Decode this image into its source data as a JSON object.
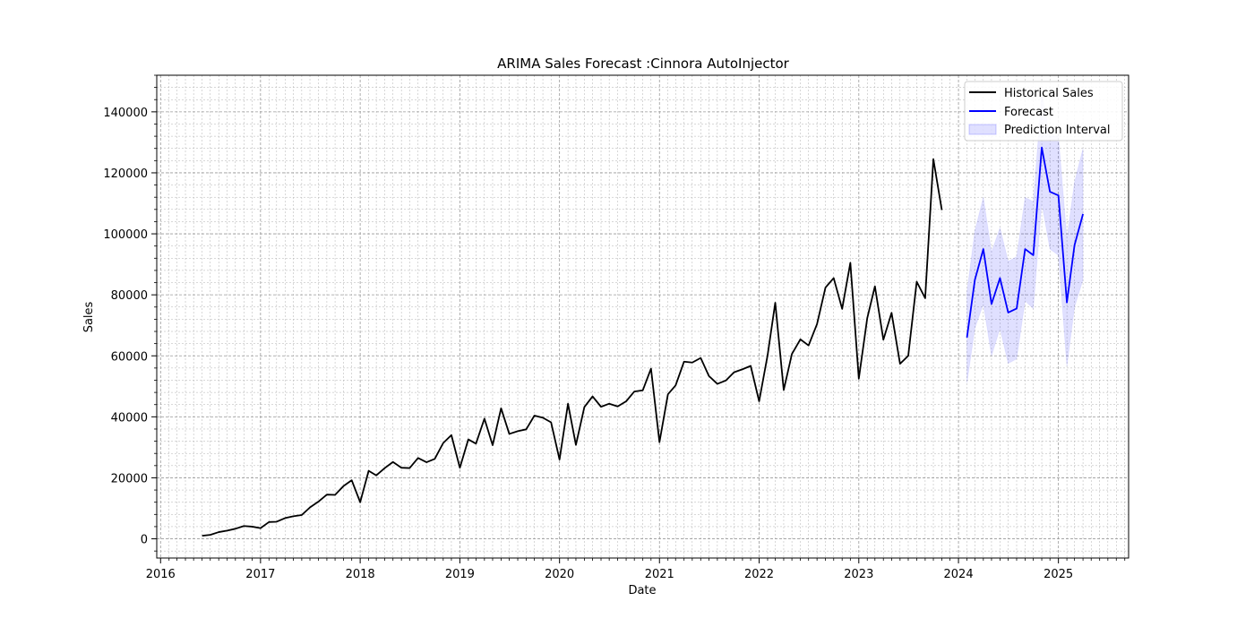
{
  "chart_data": {
    "type": "line",
    "title": "ARIMA Sales Forecast :Cinnora AutoInjector",
    "xlabel": "Date",
    "ylabel": "Sales",
    "xlim": [
      "2015-12-18",
      "2025-09-15"
    ],
    "ylim": [
      -6300,
      152000
    ],
    "x_ticks": [
      "2016",
      "2017",
      "2018",
      "2019",
      "2020",
      "2021",
      "2022",
      "2023",
      "2024",
      "2025"
    ],
    "y_ticks": [
      0,
      20000,
      40000,
      60000,
      80000,
      100000,
      120000,
      140000
    ],
    "y_tick_labels": [
      "0",
      "20000",
      "40000",
      "60000",
      "80000",
      "100000",
      "120000",
      "140000"
    ],
    "grid": true,
    "grid_minor": true,
    "legend_position": "top-right",
    "series": [
      {
        "name": "Historical Sales",
        "color": "#000000",
        "x": [
          "2016-06",
          "2016-07",
          "2016-08",
          "2016-09",
          "2016-10",
          "2016-11",
          "2016-12",
          "2017-01",
          "2017-02",
          "2017-03",
          "2017-04",
          "2017-05",
          "2017-06",
          "2017-07",
          "2017-08",
          "2017-09",
          "2017-10",
          "2017-11",
          "2017-12",
          "2018-01",
          "2018-02",
          "2018-03",
          "2018-04",
          "2018-05",
          "2018-06",
          "2018-07",
          "2018-08",
          "2018-09",
          "2018-10",
          "2018-11",
          "2018-12",
          "2019-01",
          "2019-02",
          "2019-03",
          "2019-04",
          "2019-05",
          "2019-06",
          "2019-07",
          "2019-08",
          "2019-09",
          "2019-10",
          "2019-11",
          "2019-12",
          "2020-01",
          "2020-02",
          "2020-03",
          "2020-04",
          "2020-05",
          "2020-06",
          "2020-07",
          "2020-08",
          "2020-09",
          "2020-10",
          "2020-11",
          "2020-12",
          "2021-01",
          "2021-02",
          "2021-03",
          "2021-04",
          "2021-05",
          "2021-06",
          "2021-07",
          "2021-08",
          "2021-09",
          "2021-10",
          "2021-11",
          "2021-12",
          "2022-01",
          "2022-02",
          "2022-03",
          "2022-04",
          "2022-05",
          "2022-06",
          "2022-07",
          "2022-08",
          "2022-09",
          "2022-10",
          "2022-11",
          "2022-12",
          "2023-01",
          "2023-02",
          "2023-03",
          "2023-04",
          "2023-05",
          "2023-06",
          "2023-07",
          "2023-08",
          "2023-09",
          "2023-10",
          "2023-11"
        ],
        "values": [
          1000,
          1300,
          2200,
          2700,
          3300,
          4200,
          4000,
          3500,
          5500,
          5600,
          6800,
          7400,
          7800,
          10300,
          12200,
          14500,
          14400,
          17300,
          19200,
          12000,
          22300,
          20800,
          23200,
          25200,
          23300,
          23200,
          26500,
          25100,
          26200,
          31400,
          34000,
          23300,
          32600,
          31200,
          39400,
          30700,
          42800,
          34400,
          35300,
          35900,
          40400,
          39700,
          38200,
          26000,
          44300,
          30800,
          43200,
          46700,
          43300,
          44300,
          43400,
          45100,
          48300,
          48700,
          55800,
          31700,
          47400,
          50300,
          58100,
          57800,
          59300,
          53400,
          50800,
          51900,
          54600,
          55600,
          56700,
          45100,
          60200,
          77400,
          48800,
          60600,
          65400,
          63400,
          70400,
          82400,
          85500,
          75400,
          90500,
          52500,
          72400,
          82800,
          65300,
          74100,
          57400,
          60000,
          84300,
          78900,
          124500,
          107800
        ]
      },
      {
        "name": "Forecast",
        "color": "#0000ff",
        "x": [
          "2024-02",
          "2024-03",
          "2024-04",
          "2024-05",
          "2024-06",
          "2024-07",
          "2024-08",
          "2024-09",
          "2024-10",
          "2024-11",
          "2024-12",
          "2025-01",
          "2025-02",
          "2025-03",
          "2025-04"
        ],
        "values": [
          66000,
          84900,
          95000,
          77000,
          85500,
          74200,
          75500,
          95000,
          93000,
          128300,
          113800,
          112600,
          77500,
          96300,
          106500
        ]
      }
    ],
    "interval": {
      "name": "Prediction Interval",
      "color": "#0000ff",
      "opacity": 0.12,
      "x": [
        "2024-02",
        "2024-03",
        "2024-04",
        "2024-05",
        "2024-06",
        "2024-07",
        "2024-08",
        "2024-09",
        "2024-10",
        "2024-11",
        "2024-12",
        "2025-01",
        "2025-02",
        "2025-03",
        "2025-04"
      ],
      "lower": [
        51000,
        69000,
        77000,
        60000,
        69000,
        57500,
        59000,
        78000,
        75500,
        110000,
        95000,
        93000,
        56500,
        76000,
        85000
      ],
      "upper": [
        81000,
        101000,
        112000,
        94000,
        102000,
        91000,
        92500,
        112000,
        110500,
        146000,
        132000,
        132000,
        98500,
        117000,
        128000
      ]
    }
  }
}
